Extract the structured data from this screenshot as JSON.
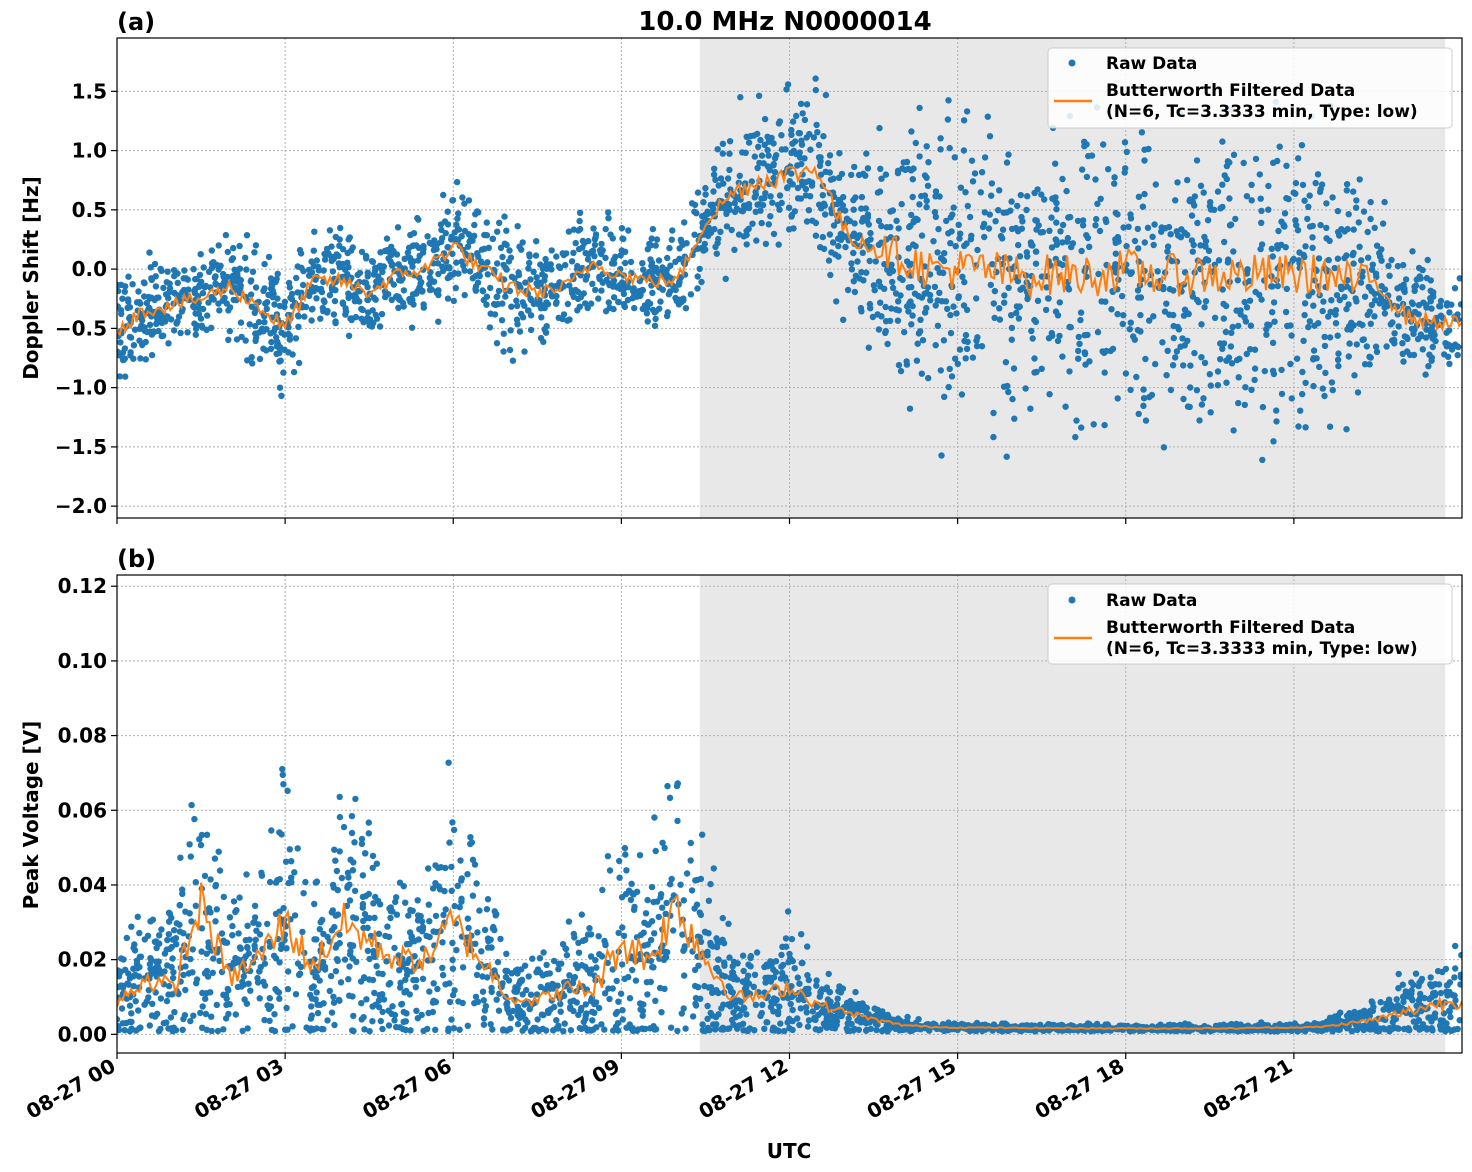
{
  "figure": {
    "title": "10.0 MHz N0000014",
    "xlabel": "UTC",
    "x_ticks": [
      "08-27 00",
      "08-27 03",
      "08-27 06",
      "08-27 09",
      "08-27 12",
      "08-27 15",
      "08-27 18",
      "08-27 21"
    ],
    "shaded_span_hours": [
      10.4,
      23.7
    ],
    "colors": {
      "raw": "#1f77b4",
      "filtered": "#ff7f0e",
      "shade": "#e8e8e8",
      "grid": "#b0b0b0"
    }
  },
  "chart_data": [
    {
      "type": "scatter",
      "panel_label": "(a)",
      "ylabel": "Doppler Shift [Hz]",
      "xlim": [
        0,
        24
      ],
      "ylim": [
        -2.1,
        1.95
      ],
      "y_ticks": [
        1.5,
        1.0,
        0.5,
        0.0,
        -0.5,
        -1.0,
        -1.5,
        -2.0
      ],
      "y_tick_labels": [
        "1.5",
        "1.0",
        "0.5",
        "0.0",
        "−0.5",
        "−1.0",
        "−1.5",
        "−2.0"
      ],
      "legend": {
        "placement": "top-right",
        "raw_label": "Raw Data",
        "filtered_label_1": "Butterworth Filtered Data",
        "filtered_label_2": "(N=6, Tc=3.3333 min, Type: low)"
      },
      "series": [
        {
          "name": "Butterworth Filtered Data",
          "x": [
            0,
            0.5,
            1,
            1.5,
            2,
            2.5,
            3,
            3.5,
            4,
            4.5,
            5,
            5.5,
            6,
            6.5,
            7,
            7.5,
            8,
            8.5,
            9,
            9.5,
            10,
            10.5,
            11,
            11.5,
            12,
            12.5,
            13,
            13.5,
            14,
            14.5,
            15,
            15.5,
            16,
            16.5,
            17,
            17.5,
            18,
            18.5,
            19,
            19.5,
            20,
            20.5,
            21,
            21.5,
            22,
            22.5,
            23,
            23.5,
            24
          ],
          "y": [
            -0.5,
            -0.35,
            -0.3,
            -0.25,
            -0.15,
            -0.3,
            -0.5,
            -0.1,
            -0.1,
            -0.2,
            -0.05,
            0.0,
            0.2,
            0.0,
            -0.15,
            -0.2,
            -0.15,
            0.05,
            -0.05,
            -0.1,
            -0.1,
            0.4,
            0.65,
            0.75,
            0.8,
            0.85,
            0.3,
            0.2,
            0.1,
            0.0,
            0.0,
            0.0,
            -0.05,
            -0.05,
            -0.05,
            -0.05,
            0.0,
            -0.05,
            -0.05,
            -0.05,
            -0.05,
            -0.05,
            -0.05,
            -0.05,
            -0.1,
            -0.1,
            -0.4,
            -0.45,
            -0.45
          ],
          "spread": [
            0.25,
            0.2,
            0.2,
            0.2,
            0.2,
            0.25,
            0.25,
            0.2,
            0.2,
            0.2,
            0.2,
            0.2,
            0.25,
            0.2,
            0.3,
            0.2,
            0.2,
            0.2,
            0.2,
            0.2,
            0.2,
            0.2,
            0.3,
            0.3,
            0.3,
            0.3,
            0.3,
            0.4,
            0.55,
            0.6,
            0.6,
            0.6,
            0.6,
            0.6,
            0.6,
            0.6,
            0.6,
            0.6,
            0.6,
            0.6,
            0.6,
            0.6,
            0.6,
            0.6,
            0.55,
            0.4,
            0.25,
            0.2,
            0.2
          ]
        }
      ]
    },
    {
      "type": "scatter",
      "panel_label": "(b)",
      "ylabel": "Peak Voltage [V]",
      "xlim": [
        0,
        24
      ],
      "ylim": [
        -0.005,
        0.123
      ],
      "y_ticks": [
        0.12,
        0.1,
        0.08,
        0.06,
        0.04,
        0.02,
        0.0
      ],
      "y_tick_labels": [
        "0.12",
        "0.10",
        "0.08",
        "0.06",
        "0.04",
        "0.02",
        "0.00"
      ],
      "legend": {
        "placement": "top-right",
        "raw_label": "Raw Data",
        "filtered_label_1": "Butterworth Filtered Data",
        "filtered_label_2": "(N=6, Tc=3.3333 min, Type: low)"
      },
      "series": [
        {
          "name": "Butterworth Filtered Data",
          "x": [
            0,
            0.5,
            1,
            1.5,
            2,
            2.5,
            3,
            3.5,
            4,
            4.5,
            5,
            5.5,
            6,
            6.5,
            7,
            7.5,
            8,
            8.5,
            9,
            9.5,
            10,
            10.5,
            11,
            11.5,
            12,
            12.5,
            13,
            13.5,
            14,
            14.5,
            15,
            15.5,
            16,
            16.5,
            17,
            17.5,
            18,
            18.5,
            19,
            19.5,
            20,
            20.5,
            21,
            21.5,
            22,
            22.5,
            23,
            23.5,
            24
          ],
          "y": [
            0.008,
            0.015,
            0.012,
            0.035,
            0.015,
            0.02,
            0.03,
            0.018,
            0.03,
            0.025,
            0.02,
            0.02,
            0.03,
            0.02,
            0.01,
            0.009,
            0.012,
            0.012,
            0.025,
            0.02,
            0.035,
            0.02,
            0.01,
            0.01,
            0.013,
            0.008,
            0.006,
            0.004,
            0.0025,
            0.002,
            0.0018,
            0.0018,
            0.0017,
            0.0017,
            0.0017,
            0.0016,
            0.0016,
            0.0016,
            0.0016,
            0.0016,
            0.0016,
            0.0018,
            0.0018,
            0.002,
            0.003,
            0.004,
            0.006,
            0.008,
            0.009
          ],
          "spread": [
            0.006,
            0.01,
            0.01,
            0.02,
            0.01,
            0.012,
            0.02,
            0.012,
            0.02,
            0.015,
            0.012,
            0.012,
            0.02,
            0.012,
            0.006,
            0.006,
            0.008,
            0.01,
            0.02,
            0.015,
            0.025,
            0.015,
            0.006,
            0.006,
            0.008,
            0.005,
            0.003,
            0.002,
            0.001,
            0.0006,
            0.0005,
            0.0005,
            0.0005,
            0.0005,
            0.0005,
            0.0005,
            0.0005,
            0.0005,
            0.0005,
            0.0005,
            0.0005,
            0.0005,
            0.0005,
            0.0006,
            0.0015,
            0.003,
            0.005,
            0.006,
            0.007
          ]
        }
      ]
    }
  ]
}
